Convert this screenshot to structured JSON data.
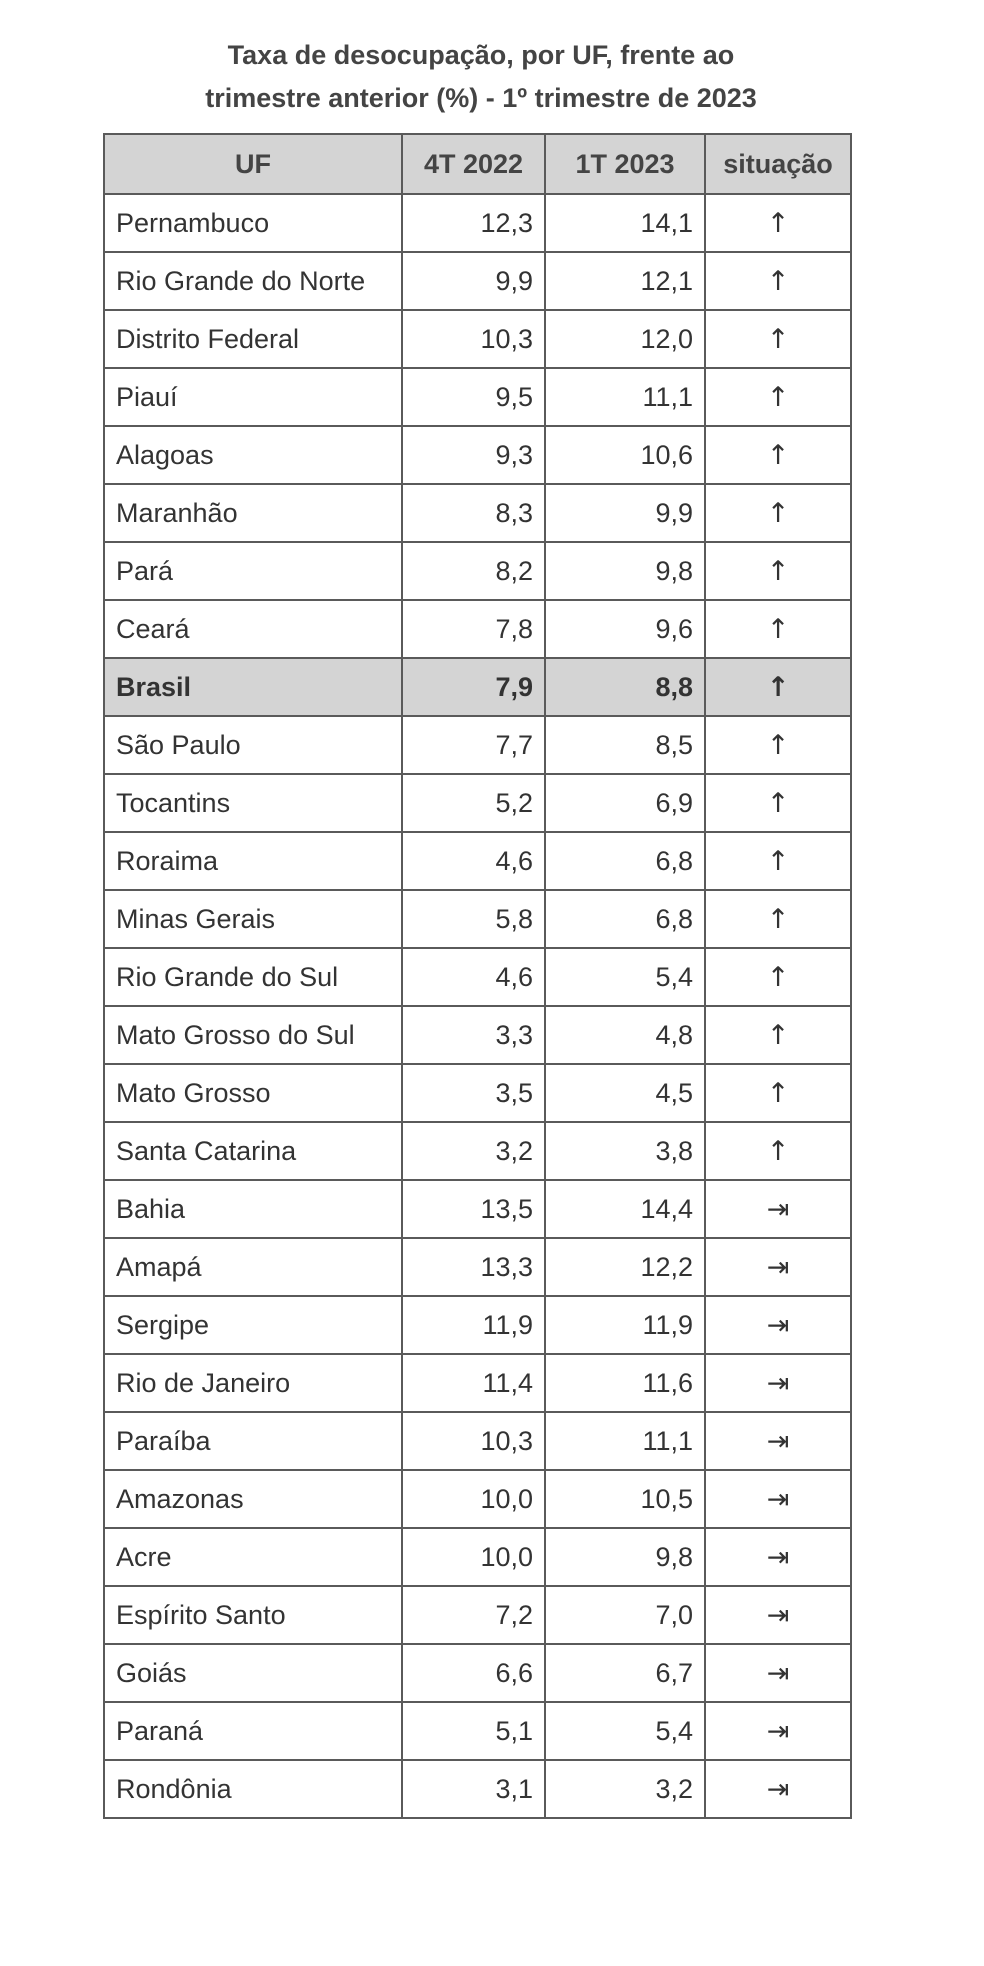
{
  "title": {
    "line1": "Taxa de desocupação, por UF, frente ao",
    "line2": "trimestre anterior (%) - 1º trimestre de 2023"
  },
  "table": {
    "headers": [
      "UF",
      "4T 2022",
      "1T 2023",
      "situação"
    ],
    "rows": [
      {
        "uf": "Pernambuco",
        "t4_2022": "12,3",
        "t1_2023": "14,1",
        "situacao": "↑"
      },
      {
        "uf": "Rio Grande do Norte",
        "t4_2022": "9,9",
        "t1_2023": "12,1",
        "situacao": "↑"
      },
      {
        "uf": "Distrito Federal",
        "t4_2022": "10,3",
        "t1_2023": "12,0",
        "situacao": "↑"
      },
      {
        "uf": "Piauí",
        "t4_2022": "9,5",
        "t1_2023": "11,1",
        "situacao": "↑"
      },
      {
        "uf": "Alagoas",
        "t4_2022": "9,3",
        "t1_2023": "10,6",
        "situacao": "↑"
      },
      {
        "uf": "Maranhão",
        "t4_2022": "8,3",
        "t1_2023": "9,9",
        "situacao": "↑"
      },
      {
        "uf": "Pará",
        "t4_2022": "8,2",
        "t1_2023": "9,8",
        "situacao": "↑"
      },
      {
        "uf": "Ceará",
        "t4_2022": "7,8",
        "t1_2023": "9,6",
        "situacao": "↑"
      },
      {
        "uf": "Brasil",
        "t4_2022": "7,9",
        "t1_2023": "8,8",
        "situacao": "↑",
        "highlight": true
      },
      {
        "uf": "São Paulo",
        "t4_2022": "7,7",
        "t1_2023": "8,5",
        "situacao": "↑"
      },
      {
        "uf": "Tocantins",
        "t4_2022": "5,2",
        "t1_2023": "6,9",
        "situacao": "↑"
      },
      {
        "uf": "Roraima",
        "t4_2022": "4,6",
        "t1_2023": "6,8",
        "situacao": "↑"
      },
      {
        "uf": "Minas Gerais",
        "t4_2022": "5,8",
        "t1_2023": "6,8",
        "situacao": "↑"
      },
      {
        "uf": "Rio Grande do Sul",
        "t4_2022": "4,6",
        "t1_2023": "5,4",
        "situacao": "↑"
      },
      {
        "uf": "Mato Grosso do Sul",
        "t4_2022": "3,3",
        "t1_2023": "4,8",
        "situacao": "↑"
      },
      {
        "uf": "Mato Grosso",
        "t4_2022": "3,5",
        "t1_2023": "4,5",
        "situacao": "↑"
      },
      {
        "uf": "Santa Catarina",
        "t4_2022": "3,2",
        "t1_2023": "3,8",
        "situacao": "↑"
      },
      {
        "uf": "Bahia",
        "t4_2022": "13,5",
        "t1_2023": "14,4",
        "situacao": "⇥"
      },
      {
        "uf": "Amapá",
        "t4_2022": "13,3",
        "t1_2023": "12,2",
        "situacao": "⇥"
      },
      {
        "uf": "Sergipe",
        "t4_2022": "11,9",
        "t1_2023": "11,9",
        "situacao": "⇥"
      },
      {
        "uf": "Rio de Janeiro",
        "t4_2022": "11,4",
        "t1_2023": "11,6",
        "situacao": "⇥"
      },
      {
        "uf": "Paraíba",
        "t4_2022": "10,3",
        "t1_2023": "11,1",
        "situacao": "⇥"
      },
      {
        "uf": "Amazonas",
        "t4_2022": "10,0",
        "t1_2023": "10,5",
        "situacao": "⇥"
      },
      {
        "uf": "Acre",
        "t4_2022": "10,0",
        "t1_2023": "9,8",
        "situacao": "⇥"
      },
      {
        "uf": "Espírito Santo",
        "t4_2022": "7,2",
        "t1_2023": "7,0",
        "situacao": "⇥"
      },
      {
        "uf": "Goiás",
        "t4_2022": "6,6",
        "t1_2023": "6,7",
        "situacao": "⇥"
      },
      {
        "uf": "Paraná",
        "t4_2022": "5,1",
        "t1_2023": "5,4",
        "situacao": "⇥"
      },
      {
        "uf": "Rondônia",
        "t4_2022": "3,1",
        "t1_2023": "3,2",
        "situacao": "⇥"
      }
    ]
  }
}
